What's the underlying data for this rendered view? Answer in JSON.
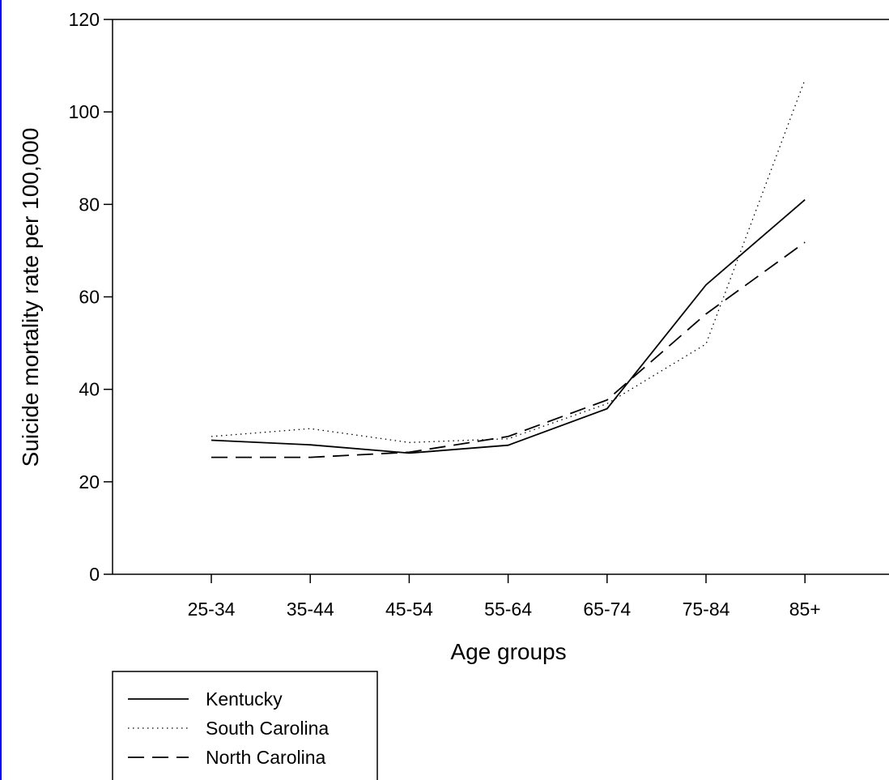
{
  "chart_data": {
    "type": "line",
    "title": "",
    "xlabel": "Age groups",
    "ylabel": "Suicide mortality rate per 100,000",
    "categories": [
      "25-34",
      "35-44",
      "45-54",
      "55-64",
      "65-74",
      "75-84",
      "85+"
    ],
    "ylim": [
      0,
      120
    ],
    "yticks": [
      0,
      20,
      40,
      60,
      80,
      100,
      120
    ],
    "grid": false,
    "legend_position": "bottom-left, below plot",
    "series": [
      {
        "name": "Kentucky",
        "style": "solid",
        "values": [
          29.0,
          28.0,
          26.2,
          27.9,
          35.8,
          62.6,
          81.0
        ]
      },
      {
        "name": "South Carolina",
        "style": "dotted",
        "values": [
          29.8,
          31.5,
          28.5,
          29.3,
          36.9,
          49.8,
          107.0
        ]
      },
      {
        "name": "North Carolina",
        "style": "dashed",
        "values": [
          25.3,
          25.3,
          26.4,
          29.8,
          37.7,
          56.3,
          71.8
        ]
      }
    ]
  },
  "colors": {
    "line": "#000000",
    "edge": "#0000ff"
  }
}
